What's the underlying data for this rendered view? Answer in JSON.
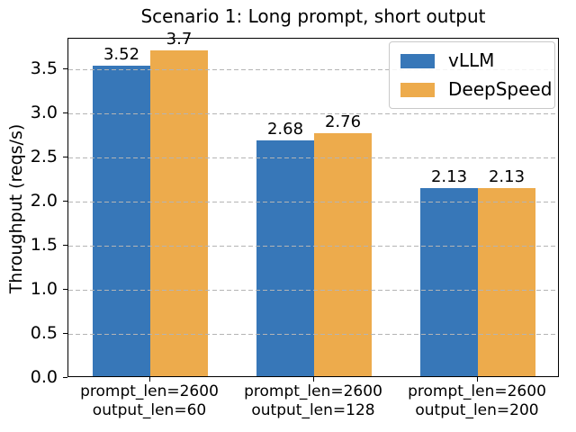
{
  "chart_data": {
    "type": "bar",
    "title": "Scenario 1: Long prompt, short output",
    "xlabel": "",
    "ylabel": "Throughput (reqs/s)",
    "categories": [
      "prompt_len=2600\noutput_len=60",
      "prompt_len=2600\noutput_len=128",
      "prompt_len=2600\noutput_len=200"
    ],
    "series": [
      {
        "name": "vLLM",
        "color": "#3777b8",
        "values": [
          3.52,
          2.68,
          2.13
        ],
        "value_labels": [
          "3.52",
          "2.68",
          "2.13"
        ]
      },
      {
        "name": "DeepSpeed",
        "color": "#edab4c",
        "values": [
          3.7,
          2.76,
          2.13
        ],
        "value_labels": [
          "3.7",
          "2.76",
          "2.13"
        ]
      }
    ],
    "ylim": [
      0,
      3.85
    ],
    "yticks": [
      0.0,
      0.5,
      1.0,
      1.5,
      2.0,
      2.5,
      3.0,
      3.5
    ],
    "ytick_labels": [
      "0.0",
      "0.5",
      "1.0",
      "1.5",
      "2.0",
      "2.5",
      "3.0",
      "3.5"
    ],
    "grid": {
      "axis": "y",
      "style": "dashed",
      "color": "#b4b4b4",
      "above_bars": true
    },
    "legend": {
      "position": "upper right",
      "entries": [
        "vLLM",
        "DeepSpeed"
      ]
    }
  }
}
